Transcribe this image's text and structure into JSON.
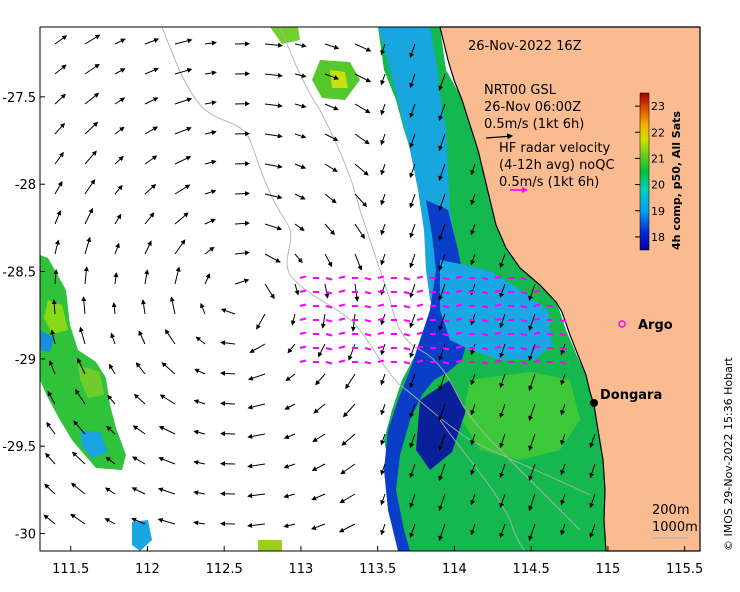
{
  "map": {
    "lon_ticks": [
      "111.5",
      "112",
      "112.5",
      "113",
      "113.5",
      "114",
      "114.5",
      "115",
      "115.5"
    ],
    "lon_values": [
      111.5,
      112,
      112.5,
      113,
      113.5,
      114,
      114.5,
      115,
      115.5
    ],
    "lat_ticks": [
      "-27.5",
      "-28",
      "-28.5",
      "-29",
      "-29.5",
      "-30"
    ],
    "lat_values": [
      -27.5,
      -28,
      -28.5,
      -29,
      -29.5,
      -30
    ],
    "lon_range": [
      111.3,
      115.6
    ],
    "lat_range": [
      -30.1,
      -27.1
    ],
    "land_color": "#f9bb8f",
    "vector_color": "#000000",
    "hf_color": "#ff00ff"
  },
  "annotations": {
    "datetime": "26-Nov-2022 16Z",
    "model_name": "NRT00 GSL",
    "model_time": "26-Nov 06:00Z",
    "model_scale": "0.5m/s (1kt 6h)",
    "hf_title": "HF radar velocity",
    "hf_sub": "(4-12h avg) noQC",
    "hf_scale": "0.5m/s (1kt 6h)",
    "isobath_1": "200m",
    "isobath_2": "1000m"
  },
  "places": [
    {
      "name": "Argo",
      "lon": 114.95,
      "lat": -28.85,
      "marker": "magenta-circle"
    },
    {
      "name": "Dongara",
      "lon": 114.93,
      "lat": -29.25,
      "marker": "black-dot"
    }
  ],
  "colorbar": {
    "title": "4h comp, p50, All Sats",
    "ticks": [
      "18",
      "19",
      "20",
      "21",
      "22",
      "23"
    ],
    "min": 17.5,
    "max": 23.5
  },
  "credit": "© IMOS 29-Nov-2022 15:36 Hobart"
}
